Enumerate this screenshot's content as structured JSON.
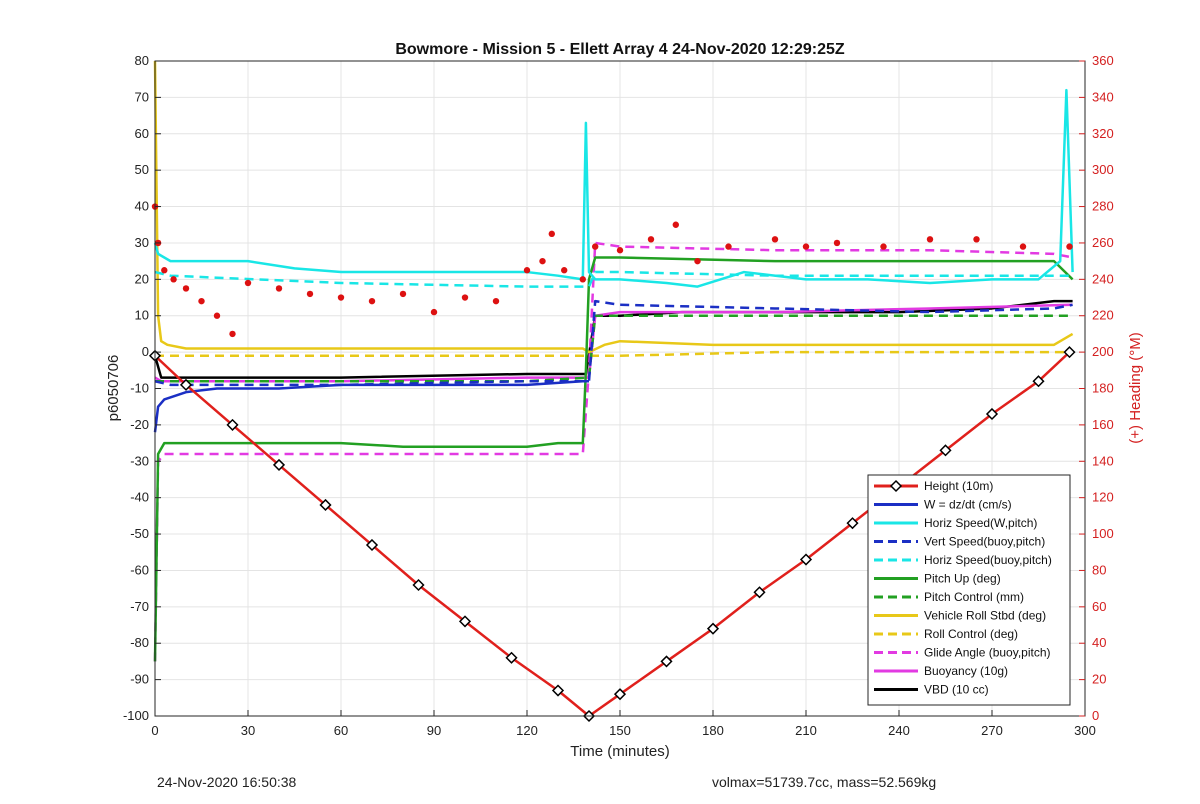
{
  "chart_data": {
    "type": "line",
    "title": "Bowmore - Mission 5 - Ellett Array 4 24-Nov-2020 12:29:25Z",
    "xlabel": "Time (minutes)",
    "ylabel_left": "p6050706",
    "ylabel_right": "(+) Heading (°M)",
    "xlim": [
      0,
      300
    ],
    "ylim_left": [
      -100,
      80
    ],
    "ylim_right": [
      0,
      360
    ],
    "x_ticks": [
      0,
      30,
      60,
      90,
      120,
      150,
      180,
      210,
      240,
      270,
      300
    ],
    "y_left_ticks": [
      -100,
      -90,
      -80,
      -70,
      -60,
      -50,
      -40,
      -30,
      -20,
      -10,
      0,
      10,
      20,
      30,
      40,
      50,
      60,
      70,
      80
    ],
    "y_right_ticks": [
      0,
      20,
      40,
      60,
      80,
      100,
      120,
      140,
      160,
      180,
      200,
      220,
      240,
      260,
      280,
      300,
      320,
      340,
      360
    ],
    "grid": true,
    "legend_position": "bottom-right",
    "colors": {
      "red": "#e0201c",
      "blue": "#1b2fc4",
      "cyan": "#19e6e6",
      "green": "#22a022",
      "yellow": "#e8c818",
      "magenta": "#e23ae2",
      "black": "#000000",
      "heading": "#dd1111",
      "right_axis": "#d42020"
    },
    "series": [
      {
        "name": "Height (10m)",
        "color": "#e0201c",
        "style": "solid",
        "marker": "diamond",
        "x": [
          0,
          10,
          25,
          40,
          55,
          70,
          85,
          100,
          115,
          130,
          140,
          150,
          165,
          180,
          195,
          210,
          225,
          240,
          255,
          270,
          285,
          295
        ],
        "y": [
          -1,
          -9,
          -20,
          -31,
          -42,
          -53,
          -64,
          -74,
          -84,
          -93,
          -100,
          -94,
          -85,
          -76,
          -66,
          -57,
          -47,
          -37,
          -27,
          -17,
          -8,
          0
        ]
      },
      {
        "name": "W = dz/dt (cm/s)",
        "color": "#1b2fc4",
        "style": "solid",
        "x": [
          0,
          1,
          3,
          10,
          20,
          40,
          60,
          80,
          100,
          120,
          138,
          140
        ],
        "y": [
          -22,
          -15,
          -13,
          -11,
          -10,
          -10,
          -9,
          -9,
          -9,
          -9,
          -8,
          -8
        ]
      },
      {
        "name": "Horiz Speed(W,pitch)",
        "color": "#19e6e6",
        "style": "solid",
        "x": [
          0,
          1,
          5,
          15,
          30,
          45,
          60,
          75,
          90,
          105,
          120,
          130,
          138,
          139,
          140,
          142,
          150,
          165,
          175,
          190,
          210,
          230,
          250,
          270,
          285,
          292,
          294,
          296
        ],
        "y": [
          30,
          27,
          25,
          25,
          25,
          23,
          22,
          22,
          22,
          22,
          22,
          21,
          20,
          63,
          22,
          20,
          20,
          19,
          18,
          22,
          20,
          20,
          19,
          20,
          20,
          25,
          72,
          22
        ]
      },
      {
        "name": "Vert Speed(buoy,pitch)",
        "color": "#1b2fc4",
        "style": "dashed",
        "x": [
          0,
          5,
          60,
          120,
          140,
          142,
          150,
          200,
          250,
          290,
          296
        ],
        "y": [
          -8,
          -9,
          -9,
          -8,
          -8,
          14,
          13,
          12,
          11,
          12,
          13
        ]
      },
      {
        "name": "Horiz Speed(buoy,pitch)",
        "color": "#19e6e6",
        "style": "dashed",
        "x": [
          0,
          5,
          60,
          120,
          140,
          142,
          150,
          200,
          250,
          296
        ],
        "y": [
          22,
          21,
          19,
          18,
          18,
          22,
          22,
          21,
          21,
          21
        ]
      },
      {
        "name": "Pitch Up (deg)",
        "color": "#22a022",
        "style": "solid",
        "x": [
          0,
          1,
          3,
          10,
          30,
          60,
          80,
          90,
          100,
          120,
          130,
          138,
          139,
          140,
          142,
          150,
          200,
          250,
          290,
          296
        ],
        "y": [
          -85,
          -28,
          -25,
          -25,
          -25,
          -25,
          -26,
          -26,
          -26,
          -26,
          -25,
          -25,
          -5,
          20,
          26,
          26,
          25,
          25,
          25,
          20
        ]
      },
      {
        "name": "Pitch Control (mm)",
        "color": "#22a022",
        "style": "dashed",
        "x": [
          0,
          5,
          60,
          120,
          140,
          142,
          150,
          200,
          250,
          296
        ],
        "y": [
          -8,
          -8,
          -8,
          -8,
          -7,
          10,
          10,
          10,
          10,
          10
        ]
      },
      {
        "name": "Vehicle Roll Stbd (deg)",
        "color": "#e8c818",
        "style": "solid",
        "x": [
          0,
          1,
          2,
          4,
          10,
          30,
          60,
          90,
          120,
          138,
          140,
          145,
          150,
          180,
          210,
          240,
          270,
          290,
          296
        ],
        "y": [
          80,
          10,
          3,
          2,
          1,
          1,
          1,
          1,
          1,
          1,
          0,
          2,
          3,
          2,
          2,
          2,
          2,
          2,
          5
        ]
      },
      {
        "name": "Roll Control (deg)",
        "color": "#e8c818",
        "style": "dashed",
        "x": [
          0,
          5,
          60,
          120,
          140,
          142,
          150,
          200,
          250,
          296
        ],
        "y": [
          -1,
          -1,
          -1,
          -1,
          -1,
          -1,
          -1,
          0,
          0,
          0
        ]
      },
      {
        "name": "Glide Angle (buoy,pitch)",
        "color": "#e23ae2",
        "style": "dashed",
        "x": [
          0,
          1,
          3,
          10,
          60,
          120,
          138,
          140,
          142,
          150,
          200,
          250,
          290,
          296
        ],
        "y": [
          -85,
          -30,
          -28,
          -28,
          -28,
          -28,
          -28,
          -5,
          30,
          29,
          28,
          28,
          27,
          26
        ]
      },
      {
        "name": "Buoyancy (10g)",
        "color": "#e23ae2",
        "style": "solid",
        "x": [
          0,
          2,
          10,
          60,
          120,
          140,
          142,
          150,
          200,
          250,
          296
        ],
        "y": [
          -7,
          -8,
          -8,
          -8,
          -7,
          -7,
          10,
          11,
          11,
          12,
          13
        ]
      },
      {
        "name": "VBD (10 cc)",
        "color": "#000000",
        "style": "solid",
        "x": [
          0,
          2,
          5,
          10,
          60,
          120,
          139,
          142,
          150,
          170,
          200,
          240,
          270,
          290,
          296
        ],
        "y": [
          -1,
          -7,
          -7,
          -7,
          -7,
          -6,
          -6,
          10,
          10,
          11,
          11,
          11,
          12,
          14,
          14
        ]
      }
    ],
    "heading_series": {
      "axis": "right",
      "color": "#dd1111",
      "x": [
        0,
        1,
        3,
        6,
        10,
        15,
        20,
        25,
        30,
        40,
        50,
        60,
        70,
        80,
        90,
        100,
        110,
        120,
        125,
        128,
        132,
        138,
        142,
        150,
        160,
        168,
        175,
        185,
        200,
        210,
        220,
        235,
        250,
        265,
        280,
        295
      ],
      "y": [
        280,
        260,
        245,
        240,
        235,
        228,
        220,
        210,
        238,
        235,
        232,
        230,
        228,
        232,
        222,
        230,
        228,
        245,
        250,
        265,
        245,
        240,
        258,
        256,
        262,
        270,
        250,
        258,
        262,
        258,
        260,
        258,
        262,
        262,
        258,
        258
      ]
    }
  },
  "footer": {
    "timestamp": "24-Nov-2020 16:50:38",
    "stats": "volmax=51739.7cc, mass=52.569kg"
  }
}
